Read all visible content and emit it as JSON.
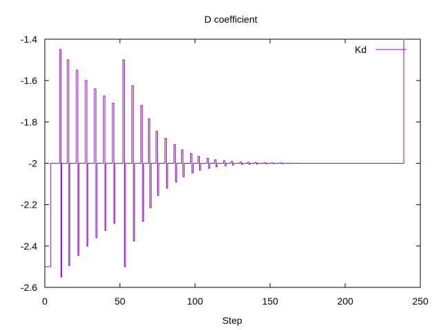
{
  "chart_data": {
    "type": "line",
    "title": "D coefficient",
    "xlabel": "Step",
    "ylabel": "",
    "xlim": [
      0,
      250
    ],
    "ylim": [
      -2.6,
      -1.4
    ],
    "xticks": [
      0,
      50,
      100,
      150,
      200,
      250
    ],
    "yticks": [
      -2.6,
      -2.4,
      -2.2,
      -2.0,
      -1.8,
      -1.6,
      -1.4
    ],
    "xtick_labels": [
      "0",
      "50",
      "100",
      "150",
      "200",
      "250"
    ],
    "ytick_labels": [
      "-2.6",
      "-2.4",
      "-2.2",
      "-2",
      "-1.8",
      "-1.6",
      "-1.4"
    ],
    "legend_position": "top-right",
    "grid": false,
    "step_style": "steps-post",
    "series": [
      {
        "name": "Kd",
        "color": "#9400d3",
        "x": [
          0,
          4,
          10,
          10.8,
          11.3,
          15,
          16,
          16.6,
          21,
          22,
          22.7,
          27,
          28,
          28.7,
          33,
          34,
          34.8,
          39,
          40,
          40.7,
          45,
          46,
          46.7,
          52,
          53,
          53.7,
          58,
          59,
          59.8,
          64,
          65,
          65.8,
          69,
          70,
          70.8,
          74,
          75,
          75.8,
          80,
          81,
          81.8,
          86,
          87,
          87.8,
          91,
          92,
          92.8,
          97,
          98,
          98.8,
          102,
          103,
          103.8,
          108,
          109,
          109.8,
          113,
          114,
          114.7,
          119,
          120,
          120.7,
          124,
          125,
          125.7,
          130,
          131,
          131.7,
          135,
          136,
          136.7,
          140,
          141,
          141.7,
          146,
          147,
          147.7,
          151,
          152,
          152.7,
          157,
          158,
          158.7,
          162,
          163,
          163.7,
          167,
          168,
          168.7,
          239,
          240
        ],
        "y": [
          -2.5,
          -2.0,
          -1.45,
          -2.55,
          -2.0,
          -1.5,
          -2.495,
          -2.0,
          -1.55,
          -2.445,
          -2.0,
          -1.6,
          -2.4,
          -2.0,
          -1.64,
          -2.36,
          -2.0,
          -1.675,
          -2.325,
          -2.0,
          -1.71,
          -2.29,
          -2.0,
          -1.5,
          -2.5,
          -2.0,
          -1.625,
          -2.375,
          -2.0,
          -1.72,
          -2.28,
          -2.0,
          -1.785,
          -2.215,
          -2.0,
          -1.845,
          -2.155,
          -2.0,
          -1.88,
          -2.12,
          -2.0,
          -1.91,
          -2.09,
          -2.0,
          -1.935,
          -2.065,
          -2.0,
          -1.953,
          -2.047,
          -2.0,
          -1.967,
          -2.033,
          -2.0,
          -1.976,
          -2.024,
          -2.0,
          -1.983,
          -2.017,
          -2.0,
          -1.988,
          -2.012,
          -2.0,
          -1.991,
          -2.009,
          -2.0,
          -1.994,
          -2.006,
          -2.0,
          -1.995,
          -2.005,
          -2.0,
          -1.996,
          -2.004,
          -2.0,
          -1.997,
          -2.003,
          -2.0,
          -1.998,
          -2.002,
          -2.0,
          -1.998,
          -2.002,
          -2.0,
          -1.999,
          -2.001,
          -2.0,
          -1.999,
          -2.001,
          -2.0,
          -1.4,
          -1.4
        ]
      }
    ]
  }
}
